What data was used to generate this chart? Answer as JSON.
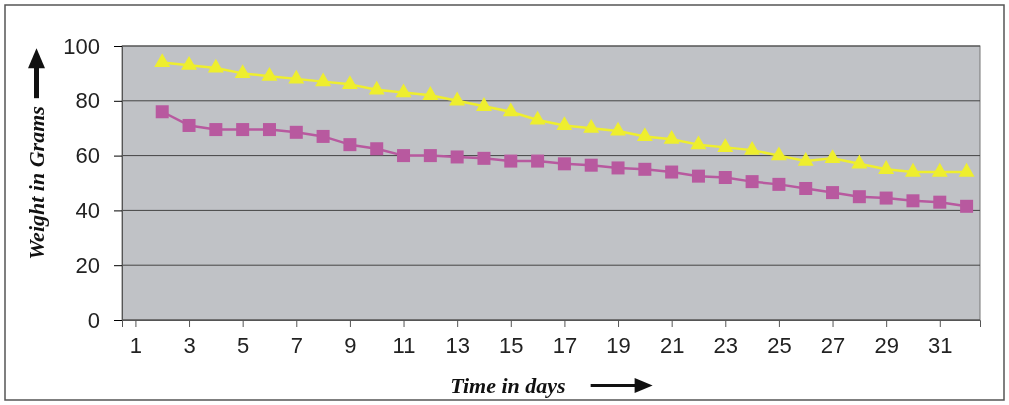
{
  "chart_data": {
    "type": "line",
    "xlabel": "Time in days",
    "ylabel": "Weight in Grams",
    "x": [
      2,
      3,
      4,
      5,
      6,
      7,
      8,
      9,
      10,
      11,
      12,
      13,
      14,
      15,
      16,
      17,
      18,
      19,
      20,
      21,
      22,
      23,
      24,
      25,
      26,
      27,
      28,
      29,
      30,
      31,
      32
    ],
    "series": [
      {
        "color": "#eeee2e",
        "marker": "triangle",
        "values": [
          94,
          93,
          92,
          90,
          89,
          88,
          87,
          86,
          84,
          83,
          82,
          80,
          78,
          76,
          73,
          71,
          70,
          69,
          67,
          66,
          64,
          63,
          62,
          60,
          58,
          59,
          57,
          55,
          54,
          54,
          54
        ]
      },
      {
        "color": "#b8599f",
        "marker": "square",
        "values": [
          76,
          71,
          69.5,
          69.5,
          69.5,
          68.5,
          67,
          64,
          62.5,
          60,
          60,
          59.5,
          59,
          58,
          58,
          57,
          56.5,
          55.5,
          55,
          54,
          52.5,
          52,
          50.5,
          49.5,
          48,
          46.5,
          45,
          44.5,
          43.5,
          43,
          41.5
        ]
      }
    ],
    "xlim": [
      0.5,
      32.5
    ],
    "xticks": [
      1,
      3,
      5,
      7,
      9,
      11,
      13,
      15,
      17,
      19,
      21,
      23,
      25,
      27,
      29,
      31
    ],
    "ylim": [
      0,
      100
    ],
    "yticks": [
      0,
      20,
      40,
      60,
      80,
      100
    ],
    "grid": "y"
  }
}
